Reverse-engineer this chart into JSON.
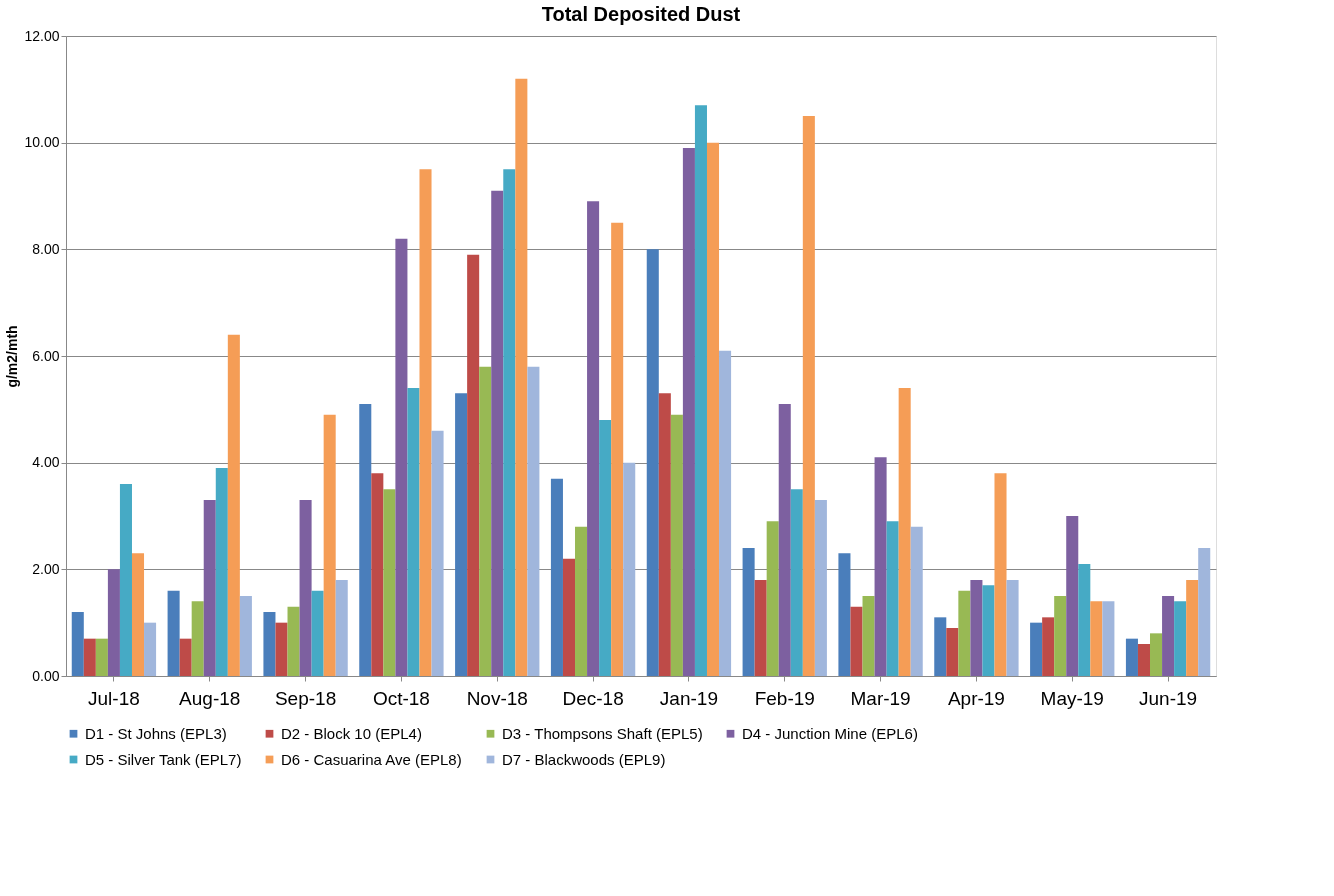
{
  "chart_data": {
    "type": "bar",
    "title": "Total Deposited Dust",
    "ylabel": "g/m2/mth",
    "categories": [
      "Jul-18",
      "Aug-18",
      "Sep-18",
      "Oct-18",
      "Nov-18",
      "Dec-18",
      "Jan-19",
      "Feb-19",
      "Mar-19",
      "Apr-19",
      "May-19",
      "Jun-19"
    ],
    "series": [
      {
        "name": "D1 - St Johns (EPL3)",
        "color": "#4a7ebb",
        "values": [
          1.2,
          1.6,
          1.2,
          5.1,
          5.3,
          3.7,
          8.0,
          2.4,
          2.3,
          1.1,
          1.0,
          0.7
        ]
      },
      {
        "name": "D2 - Block 10 (EPL4)",
        "color": "#be4b48",
        "values": [
          0.7,
          0.7,
          1.0,
          3.8,
          7.9,
          2.2,
          5.3,
          1.8,
          1.3,
          0.9,
          1.1,
          0.6
        ]
      },
      {
        "name": "D3 - Thompsons Shaft (EPL5)",
        "color": "#98b954",
        "values": [
          0.7,
          1.4,
          1.3,
          3.5,
          5.8,
          2.8,
          4.9,
          2.9,
          1.5,
          1.6,
          1.5,
          0.8
        ]
      },
      {
        "name": "D4 - Junction Mine (EPL6)",
        "color": "#7d60a0",
        "values": [
          2.0,
          3.3,
          3.3,
          8.2,
          9.1,
          8.9,
          9.9,
          5.1,
          4.1,
          1.8,
          3.0,
          1.5
        ]
      },
      {
        "name": "D5 - Silver Tank (EPL7)",
        "color": "#46aac5",
        "values": [
          3.6,
          3.9,
          1.6,
          5.4,
          9.5,
          4.8,
          10.7,
          3.5,
          2.9,
          1.7,
          2.1,
          1.4
        ]
      },
      {
        "name": "D6 - Casuarina Ave (EPL8)",
        "color": "#f59d56",
        "values": [
          2.3,
          6.4,
          4.9,
          9.5,
          11.2,
          8.5,
          10.0,
          10.5,
          5.4,
          3.8,
          1.4,
          1.8
        ]
      },
      {
        "name": "D7 - Blackwoods (EPL9)",
        "color": "#a0b6dc",
        "values": [
          1.0,
          1.5,
          1.8,
          4.6,
          5.8,
          4.0,
          6.1,
          3.3,
          2.8,
          1.8,
          1.4,
          2.4
        ]
      }
    ],
    "ylim": [
      0,
      12
    ],
    "yticks": [
      {
        "value": 0,
        "label": "0.00"
      },
      {
        "value": 2,
        "label": "2.00"
      },
      {
        "value": 4,
        "label": "4.00"
      },
      {
        "value": 6,
        "label": "6.00"
      },
      {
        "value": 8,
        "label": "8.00"
      },
      {
        "value": 10,
        "label": "10.00"
      },
      {
        "value": 12,
        "label": "12.00"
      }
    ],
    "grid": "y",
    "legend": "bottom"
  }
}
